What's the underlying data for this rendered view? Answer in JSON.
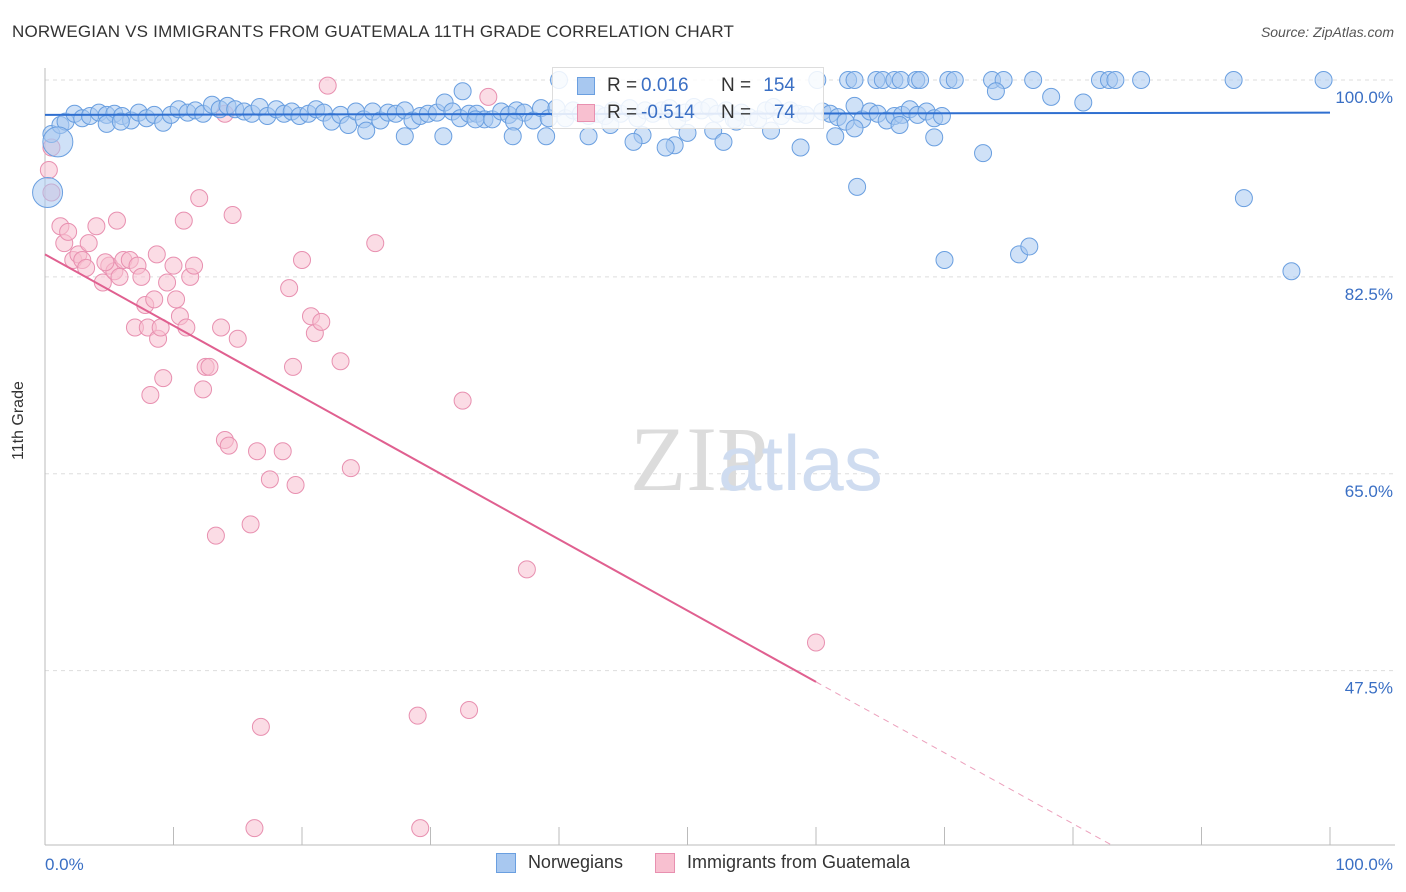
{
  "title": "NORWEGIAN VS IMMIGRANTS FROM GUATEMALA 11TH GRADE CORRELATION CHART",
  "source": "Source: ZipAtlas.com",
  "watermark": {
    "zip": "ZIP",
    "atlas": "atlas"
  },
  "legend": {
    "rows": [
      {
        "r_label": "R =",
        "r_value": "0.016",
        "n_label": "N =",
        "n_value": "154",
        "color": "#a8c8f0",
        "border": "#6a9fe0"
      },
      {
        "r_label": "R =",
        "r_value": "-0.514",
        "n_label": "N =",
        "n_value": "74",
        "color": "#f8c0d0",
        "border": "#e890b0"
      }
    ]
  },
  "bottom_legend": [
    {
      "label": "Norwegians",
      "color": "#a8c8f0",
      "border": "#6a9fe0"
    },
    {
      "label": "Immigrants from Guatemala",
      "color": "#f8c0d0",
      "border": "#e890b0"
    }
  ],
  "colors": {
    "blue_fill": "#a8c8f0",
    "blue_stroke": "#6a9fe0",
    "blue_line": "#2f6fd0",
    "pink_fill": "#f8c0d0",
    "pink_stroke": "#e890b0",
    "pink_line": "#e06090",
    "axis_text": "#3a6fc4",
    "grid": "#dddddd"
  },
  "chart_data": {
    "type": "scatter",
    "title": "NORWEGIAN VS IMMIGRANTS FROM GUATEMALA 11TH GRADE CORRELATION CHART",
    "xlabel": "",
    "ylabel": "11th Grade",
    "xlim": [
      0,
      100
    ],
    "ylim": [
      32,
      100
    ],
    "x_tick_labels": [
      "0.0%",
      "100.0%"
    ],
    "y_ticks": [
      {
        "value": 100.0,
        "label": "100.0%"
      },
      {
        "value": 82.5,
        "label": "82.5%"
      },
      {
        "value": 65.0,
        "label": "65.0%"
      },
      {
        "value": 47.5,
        "label": "47.5%"
      }
    ],
    "series": [
      {
        "name": "Norwegians",
        "trend": {
          "x": [
            0,
            100
          ],
          "y": [
            96.9,
            97.1
          ]
        },
        "points": [
          [
            0.5,
            95.2
          ],
          [
            1.2,
            96.0
          ],
          [
            1.6,
            96.3
          ],
          [
            2.3,
            97.0
          ],
          [
            2.9,
            96.6
          ],
          [
            3.5,
            96.8
          ],
          [
            4.2,
            97.1
          ],
          [
            4.8,
            96.9
          ],
          [
            5.4,
            97.0
          ],
          [
            6.0,
            96.8
          ],
          [
            6.7,
            96.4
          ],
          [
            7.3,
            97.1
          ],
          [
            7.9,
            96.6
          ],
          [
            8.5,
            96.9
          ],
          [
            9.2,
            96.2
          ],
          [
            9.8,
            96.9
          ],
          [
            10.4,
            97.4
          ],
          [
            11.1,
            97.1
          ],
          [
            11.7,
            97.3
          ],
          [
            12.3,
            97.0
          ],
          [
            13.0,
            97.8
          ],
          [
            13.6,
            97.4
          ],
          [
            14.2,
            97.7
          ],
          [
            14.8,
            97.4
          ],
          [
            15.5,
            97.2
          ],
          [
            16.1,
            97.0
          ],
          [
            16.7,
            97.6
          ],
          [
            17.3,
            96.8
          ],
          [
            18.0,
            97.4
          ],
          [
            18.6,
            97.0
          ],
          [
            19.2,
            97.2
          ],
          [
            19.8,
            96.8
          ],
          [
            20.5,
            97.0
          ],
          [
            21.1,
            97.4
          ],
          [
            21.7,
            97.1
          ],
          [
            22.3,
            96.3
          ],
          [
            23.0,
            96.9
          ],
          [
            23.6,
            96.0
          ],
          [
            24.2,
            97.2
          ],
          [
            24.8,
            96.5
          ],
          [
            25.5,
            97.2
          ],
          [
            26.1,
            96.4
          ],
          [
            26.7,
            97.1
          ],
          [
            27.3,
            97.0
          ],
          [
            28.0,
            97.3
          ],
          [
            28.6,
            96.4
          ],
          [
            29.2,
            96.8
          ],
          [
            29.8,
            97.0
          ],
          [
            30.5,
            97.1
          ],
          [
            31.1,
            98.0
          ],
          [
            31.7,
            97.2
          ],
          [
            32.3,
            96.6
          ],
          [
            33.0,
            97.0
          ],
          [
            33.6,
            97.0
          ],
          [
            34.2,
            96.5
          ],
          [
            34.8,
            96.5
          ],
          [
            35.5,
            97.2
          ],
          [
            36.1,
            96.9
          ],
          [
            36.7,
            97.3
          ],
          [
            37.3,
            97.1
          ],
          [
            38.0,
            96.4
          ],
          [
            38.6,
            97.5
          ],
          [
            39.2,
            96.6
          ],
          [
            39.8,
            97.5
          ],
          [
            40.5,
            96.6
          ],
          [
            41.1,
            97.3
          ],
          [
            41.7,
            97.0
          ],
          [
            42.3,
            96.8
          ],
          [
            43.0,
            97.0
          ],
          [
            43.6,
            96.8
          ],
          [
            44.2,
            97.3
          ],
          [
            44.8,
            97.0
          ],
          [
            45.5,
            97.5
          ],
          [
            46.1,
            96.6
          ],
          [
            46.7,
            97.3
          ],
          [
            47.3,
            97.0
          ],
          [
            48.0,
            97.3
          ],
          [
            48.6,
            97.5
          ],
          [
            49.2,
            96.4
          ],
          [
            49.8,
            97.1
          ],
          [
            50.5,
            97.6
          ],
          [
            51.1,
            97.3
          ],
          [
            51.7,
            97.6
          ],
          [
            52.3,
            97.0
          ],
          [
            53.0,
            97.3
          ],
          [
            53.6,
            96.5
          ],
          [
            54.2,
            97.1
          ],
          [
            54.8,
            96.7
          ],
          [
            55.5,
            96.5
          ],
          [
            56.1,
            97.3
          ],
          [
            56.7,
            97.6
          ],
          [
            57.3,
            96.8
          ],
          [
            58.0,
            97.3
          ],
          [
            58.6,
            97.0
          ],
          [
            59.2,
            96.9
          ],
          [
            60.5,
            97.2
          ],
          [
            61.1,
            97.0
          ],
          [
            61.7,
            96.7
          ],
          [
            62.3,
            96.3
          ],
          [
            63.0,
            97.7
          ],
          [
            63.6,
            96.5
          ],
          [
            64.2,
            97.2
          ],
          [
            64.8,
            97.0
          ],
          [
            65.5,
            96.4
          ],
          [
            66.1,
            96.8
          ],
          [
            66.7,
            96.9
          ],
          [
            67.3,
            97.4
          ],
          [
            67.9,
            96.9
          ],
          [
            68.6,
            97.2
          ],
          [
            69.2,
            96.6
          ],
          [
            69.8,
            96.8
          ],
          [
            4.8,
            96.1
          ],
          [
            5.9,
            96.3
          ],
          [
            33.5,
            96.5
          ],
          [
            36.5,
            96.3
          ],
          [
            44.0,
            96.0
          ],
          [
            49.0,
            94.2
          ],
          [
            50.0,
            95.3
          ],
          [
            46.5,
            95.1
          ],
          [
            52.0,
            95.5
          ],
          [
            53.8,
            96.3
          ],
          [
            60.1,
            100.0
          ],
          [
            62.5,
            100.0
          ],
          [
            63.0,
            100.0
          ],
          [
            64.7,
            100.0
          ],
          [
            65.2,
            100.0
          ],
          [
            66.1,
            100.0
          ],
          [
            66.6,
            100.0
          ],
          [
            67.8,
            100.0
          ],
          [
            68.1,
            100.0
          ],
          [
            70.3,
            100.0
          ],
          [
            70.8,
            100.0
          ],
          [
            73.7,
            100.0
          ],
          [
            74.6,
            100.0
          ],
          [
            74.0,
            99.0
          ],
          [
            76.9,
            100.0
          ],
          [
            82.1,
            100.0
          ],
          [
            82.8,
            100.0
          ],
          [
            83.3,
            100.0
          ],
          [
            85.3,
            100.0
          ],
          [
            92.5,
            100.0
          ],
          [
            99.5,
            100.0
          ],
          [
            40.0,
            100.0
          ],
          [
            32.5,
            99.0
          ],
          [
            78.3,
            98.5
          ],
          [
            80.8,
            98.0
          ],
          [
            36.4,
            95.0
          ],
          [
            25.0,
            95.5
          ],
          [
            28.0,
            95.0
          ],
          [
            31.0,
            95.0
          ],
          [
            39.0,
            95.0
          ],
          [
            42.3,
            95.0
          ],
          [
            45.8,
            94.5
          ],
          [
            48.3,
            94.0
          ],
          [
            52.8,
            94.5
          ],
          [
            56.5,
            95.5
          ],
          [
            61.5,
            95.0
          ],
          [
            63.0,
            95.7
          ],
          [
            66.5,
            96.0
          ],
          [
            69.2,
            94.9
          ],
          [
            63.2,
            90.5
          ],
          [
            58.8,
            94.0
          ],
          [
            73.0,
            93.5
          ],
          [
            93.3,
            89.5
          ],
          [
            70.0,
            84.0
          ],
          [
            75.8,
            84.5
          ],
          [
            76.6,
            85.2
          ],
          [
            97.0,
            83.0
          ],
          [
            1.0,
            94.5
          ],
          [
            0.2,
            90.0
          ]
        ]
      },
      {
        "name": "Immigrants from Guatemala",
        "trend": {
          "x": [
            0,
            60
          ],
          "y": [
            84.5,
            46.5
          ]
        },
        "trend_dashed": {
          "x": [
            60,
            83
          ],
          "y": [
            46.5,
            32
          ]
        },
        "points": [
          [
            0.5,
            94.0
          ],
          [
            0.5,
            90.0
          ],
          [
            1.2,
            87.0
          ],
          [
            1.5,
            85.5
          ],
          [
            1.8,
            86.5
          ],
          [
            2.2,
            84.0
          ],
          [
            2.6,
            84.5
          ],
          [
            2.9,
            84.0
          ],
          [
            3.4,
            85.5
          ],
          [
            4.0,
            87.0
          ],
          [
            4.5,
            82.0
          ],
          [
            5.0,
            83.5
          ],
          [
            5.4,
            83.0
          ],
          [
            5.6,
            87.5
          ],
          [
            5.8,
            82.5
          ],
          [
            6.1,
            84.0
          ],
          [
            6.6,
            84.0
          ],
          [
            7.0,
            78.0
          ],
          [
            7.2,
            83.5
          ],
          [
            7.5,
            82.5
          ],
          [
            7.8,
            80.0
          ],
          [
            8.0,
            78.0
          ],
          [
            8.2,
            72.0
          ],
          [
            8.5,
            80.5
          ],
          [
            8.7,
            84.5
          ],
          [
            8.8,
            77.0
          ],
          [
            9.0,
            78.0
          ],
          [
            9.2,
            73.5
          ],
          [
            9.5,
            82.0
          ],
          [
            10.0,
            83.5
          ],
          [
            10.2,
            80.5
          ],
          [
            10.5,
            79.0
          ],
          [
            10.8,
            87.5
          ],
          [
            11.0,
            78.0
          ],
          [
            11.3,
            82.5
          ],
          [
            11.6,
            83.5
          ],
          [
            12.0,
            89.5
          ],
          [
            12.3,
            72.5
          ],
          [
            12.5,
            74.5
          ],
          [
            12.8,
            74.5
          ],
          [
            13.3,
            59.5
          ],
          [
            13.7,
            78.0
          ],
          [
            14.0,
            68.0
          ],
          [
            14.3,
            67.5
          ],
          [
            14.6,
            88.0
          ],
          [
            15.0,
            77.0
          ],
          [
            16.0,
            60.5
          ],
          [
            16.5,
            67.0
          ],
          [
            16.8,
            42.5
          ],
          [
            16.3,
            33.5
          ],
          [
            17.5,
            64.5
          ],
          [
            18.5,
            67.0
          ],
          [
            19.0,
            81.5
          ],
          [
            19.3,
            74.5
          ],
          [
            19.5,
            64.0
          ],
          [
            20.0,
            84.0
          ],
          [
            20.7,
            79.0
          ],
          [
            21.0,
            77.5
          ],
          [
            21.5,
            78.5
          ],
          [
            22.0,
            99.5
          ],
          [
            23.0,
            75.0
          ],
          [
            23.8,
            65.5
          ],
          [
            25.7,
            85.5
          ],
          [
            29.0,
            43.5
          ],
          [
            29.2,
            33.5
          ],
          [
            32.5,
            71.5
          ],
          [
            33.0,
            44.0
          ],
          [
            34.5,
            98.5
          ],
          [
            37.5,
            56.5
          ],
          [
            60.0,
            50.0
          ],
          [
            14.0,
            97.0
          ],
          [
            0.3,
            92.0
          ],
          [
            4.7,
            83.8
          ],
          [
            3.2,
            83.3
          ]
        ]
      }
    ]
  }
}
